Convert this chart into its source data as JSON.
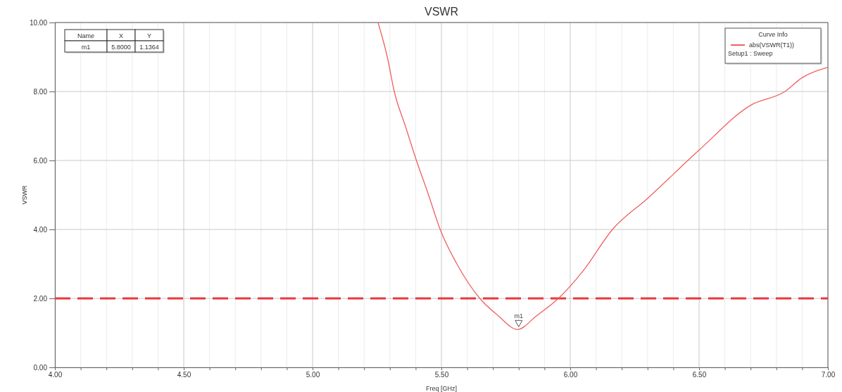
{
  "chart_data": {
    "type": "line",
    "title": "VSWR",
    "xlabel": "Freq [GHz]",
    "ylabel": "VSWR",
    "legend_title": "Curve Info",
    "series": [
      {
        "name": "abs(VSWR(T1))",
        "color": "#f06060",
        "x": [
          5.254,
          5.29,
          5.317,
          5.36,
          5.403,
          5.45,
          5.495,
          5.56,
          5.649,
          5.72,
          5.795,
          5.87,
          5.954,
          6.05,
          6.164,
          6.3,
          6.5,
          6.7,
          6.833,
          6.9,
          7.0
        ],
        "values": [
          10,
          9,
          8,
          7,
          6,
          5,
          4,
          3,
          2,
          1.5,
          1.1,
          1.5,
          2,
          2.8,
          4,
          4.9,
          6.3,
          7.6,
          8.0,
          8.4,
          8.7
        ]
      }
    ],
    "xlim": [
      4,
      7
    ],
    "ylim": [
      0,
      10
    ],
    "xticks": [
      {
        "value": 4,
        "label": "4.00"
      },
      {
        "value": 4.1,
        "label": null
      },
      {
        "value": 4.2,
        "label": null
      },
      {
        "value": 4.3,
        "label": null
      },
      {
        "value": 4.4,
        "label": null
      },
      {
        "value": 4.5,
        "label": "4.50"
      },
      {
        "value": 4.6,
        "label": null
      },
      {
        "value": 4.7,
        "label": null
      },
      {
        "value": 4.8,
        "label": null
      },
      {
        "value": 4.9,
        "label": null
      },
      {
        "value": 5,
        "label": "5.00"
      },
      {
        "value": 5.1,
        "label": null
      },
      {
        "value": 5.2,
        "label": null
      },
      {
        "value": 5.3,
        "label": null
      },
      {
        "value": 5.4,
        "label": null
      },
      {
        "value": 5.5,
        "label": "5.50"
      },
      {
        "value": 5.6,
        "label": null
      },
      {
        "value": 5.7,
        "label": null
      },
      {
        "value": 5.8,
        "label": null
      },
      {
        "value": 5.9,
        "label": null
      },
      {
        "value": 6,
        "label": "6.00"
      },
      {
        "value": 6.1,
        "label": null
      },
      {
        "value": 6.2,
        "label": null
      },
      {
        "value": 6.3,
        "label": null
      },
      {
        "value": 6.4,
        "label": null
      },
      {
        "value": 6.5,
        "label": "6.50"
      },
      {
        "value": 6.6,
        "label": null
      },
      {
        "value": 6.7,
        "label": null
      },
      {
        "value": 6.8,
        "label": null
      },
      {
        "value": 6.9,
        "label": null
      },
      {
        "value": 7,
        "label": "7.00"
      }
    ],
    "yticks": [
      {
        "value": 0,
        "label": "0.00"
      },
      {
        "value": 2,
        "label": "2.00"
      },
      {
        "value": 4,
        "label": "4.00"
      },
      {
        "value": 6,
        "label": "6.00"
      },
      {
        "value": 8,
        "label": "8.00"
      },
      {
        "value": 10,
        "label": "10.00"
      }
    ],
    "grid": true,
    "legend": "top right",
    "line_style": "solid",
    "marker": "none",
    "ref_lines": [
      {
        "axis": "y",
        "value": 2,
        "color": "#e8383d",
        "line_style": "dashed"
      }
    ],
    "annotations": [
      {
        "text": "m1",
        "x": 5.8,
        "y": 1.1364
      },
      "Name",
      "X",
      "Y",
      "m1",
      "5.8000",
      "1.1364",
      "Setup1 : Sweep"
    ]
  }
}
